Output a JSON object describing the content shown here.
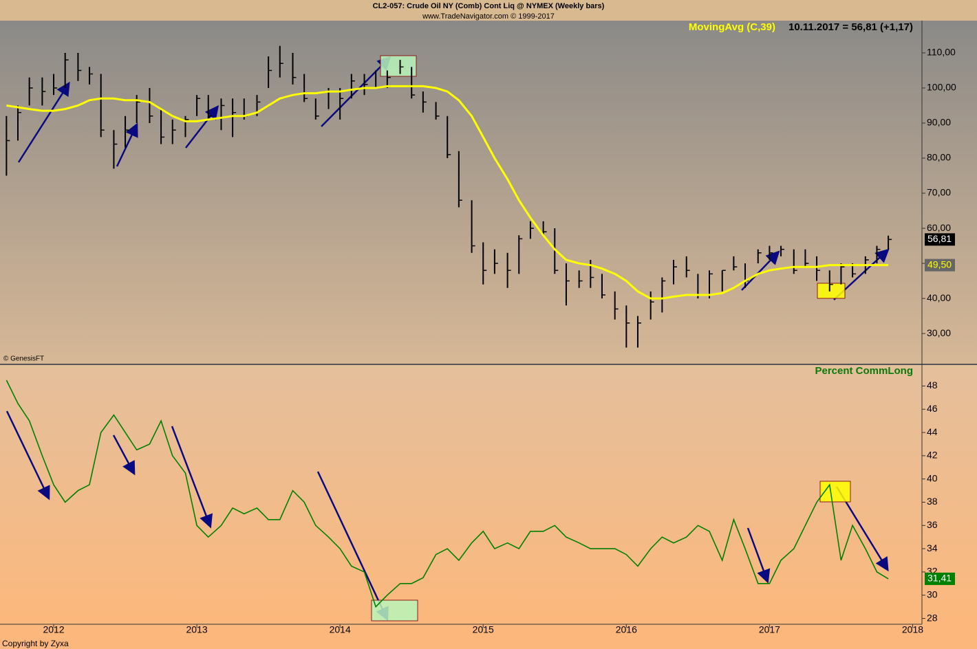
{
  "title": "CL2-057:  Crude Oil NY (Comb) Cont Liq @ NYMEX  (Weekly bars)",
  "subtitle": "www.TradeNavigator.com © 1999-2017",
  "footer": "Copyright by Zyxa",
  "chart_data": [
    {
      "type": "ohlc",
      "readout": "10.11.2017 = 56,81 (+1,17)",
      "source": "© GenesisFT",
      "color": "#000000",
      "x": [
        2011.67,
        2011.75,
        2011.83,
        2011.92,
        2012.0,
        2012.08,
        2012.17,
        2012.25,
        2012.33,
        2012.42,
        2012.5,
        2012.58,
        2012.67,
        2012.75,
        2012.83,
        2012.92,
        2013.0,
        2013.08,
        2013.17,
        2013.25,
        2013.33,
        2013.42,
        2013.5,
        2013.58,
        2013.67,
        2013.75,
        2013.83,
        2013.92,
        2014.0,
        2014.08,
        2014.17,
        2014.25,
        2014.33,
        2014.42,
        2014.5,
        2014.58,
        2014.67,
        2014.75,
        2014.83,
        2014.92,
        2015.0,
        2015.08,
        2015.17,
        2015.25,
        2015.33,
        2015.42,
        2015.5,
        2015.58,
        2015.67,
        2015.75,
        2015.83,
        2015.92,
        2016.0,
        2016.08,
        2016.17,
        2016.25,
        2016.33,
        2016.42,
        2016.5,
        2016.58,
        2016.67,
        2016.75,
        2016.83,
        2016.92,
        2017.0,
        2017.08,
        2017.17,
        2017.25,
        2017.33,
        2017.42,
        2017.5,
        2017.58,
        2017.67,
        2017.75,
        2017.83
      ],
      "high": [
        92,
        95,
        103,
        103,
        104,
        110,
        110,
        106,
        104,
        88,
        92,
        98,
        100,
        94,
        91,
        92,
        98,
        98,
        97,
        97,
        97,
        98,
        109,
        112,
        110,
        104,
        97,
        100,
        100,
        104,
        104,
        105,
        105,
        108,
        106,
        99,
        96,
        92,
        82,
        68,
        56,
        54,
        53,
        58,
        62,
        62,
        60,
        50,
        48,
        51,
        47,
        42,
        38,
        35,
        42,
        46,
        51,
        52,
        47,
        48,
        48,
        52,
        50,
        54,
        55,
        55,
        54,
        54,
        52,
        48,
        50,
        50,
        52,
        55,
        57.9
      ],
      "low": [
        75,
        85,
        95,
        95,
        98,
        100,
        102,
        101,
        86,
        77,
        83,
        90,
        90,
        84,
        84,
        86,
        92,
        91,
        88,
        86,
        91,
        92,
        100,
        103,
        101,
        96,
        91,
        94,
        91,
        97,
        98,
        100,
        100,
        104,
        97,
        93,
        91,
        80,
        66,
        53,
        44,
        47,
        43,
        47,
        57,
        58,
        47,
        38,
        43,
        43,
        40,
        34,
        26,
        26,
        34,
        36,
        44,
        46,
        40,
        40,
        42,
        48,
        43,
        50,
        51,
        52,
        47,
        49,
        45,
        42,
        44,
        46,
        47,
        50,
        54
      ],
      "close": [
        85,
        93,
        100,
        99,
        100,
        108,
        105,
        104,
        88,
        84,
        88,
        96,
        92,
        86,
        88,
        91,
        97,
        92,
        95,
        93,
        92,
        96,
        105,
        107,
        103,
        97,
        92,
        99,
        97,
        102,
        101,
        100,
        103,
        106,
        98,
        96,
        92,
        81,
        68,
        55,
        48,
        50,
        48,
        57,
        60,
        59,
        48,
        45,
        45,
        46,
        41,
        37,
        33,
        33,
        39,
        45,
        49,
        48,
        41,
        47,
        48,
        49,
        45,
        53,
        53,
        54,
        48,
        50,
        48,
        44,
        49,
        47,
        51,
        54,
        56.81
      ],
      "close_label": "56,81",
      "series": [
        {
          "name": "MovingAvg (C,39)",
          "color": "#ffff00",
          "last_label": "49,50",
          "values": [
            95,
            94.5,
            94,
            93.5,
            93.5,
            94,
            95,
            96.5,
            97,
            97,
            96.5,
            96.5,
            96,
            94,
            92,
            90.5,
            90.5,
            91,
            91.5,
            92,
            92,
            93,
            95,
            97,
            98,
            98.5,
            98.5,
            99,
            99,
            99.5,
            100,
            100,
            100.5,
            100.5,
            100.5,
            100.5,
            100,
            99,
            96.5,
            92,
            86,
            80,
            74,
            68,
            63,
            58,
            54,
            51,
            50,
            49.5,
            48.5,
            47,
            45,
            42,
            40,
            40,
            40.5,
            41,
            41,
            41,
            41.5,
            43,
            45,
            47,
            48,
            48.5,
            49,
            49,
            49,
            49.5,
            49.5,
            49.5,
            49.5,
            49.5,
            49.5
          ]
        }
      ],
      "xlim": [
        2011.625,
        2018.065
      ],
      "xticks": [
        2012,
        2013,
        2014,
        2015,
        2016,
        2017,
        2018
      ],
      "ylim": [
        21.4,
        119.2
      ],
      "yticks": [
        {
          "value": 30,
          "label": "30,00"
        },
        {
          "value": 40,
          "label": "40,00"
        },
        {
          "value": 50,
          "label": "50,00"
        },
        {
          "value": 60,
          "label": "60,00"
        },
        {
          "value": 70,
          "label": "70,00"
        },
        {
          "value": 80,
          "label": "80,00"
        },
        {
          "value": 90,
          "label": "90,00"
        },
        {
          "value": 100,
          "label": "100,00"
        },
        {
          "value": 110,
          "label": "110,00"
        }
      ]
    },
    {
      "type": "line",
      "x": [
        2011.67,
        2011.75,
        2011.83,
        2011.92,
        2012.0,
        2012.08,
        2012.17,
        2012.25,
        2012.33,
        2012.42,
        2012.5,
        2012.58,
        2012.67,
        2012.75,
        2012.83,
        2012.92,
        2013.0,
        2013.08,
        2013.17,
        2013.25,
        2013.33,
        2013.42,
        2013.5,
        2013.58,
        2013.67,
        2013.75,
        2013.83,
        2013.92,
        2014.0,
        2014.08,
        2014.17,
        2014.25,
        2014.33,
        2014.42,
        2014.5,
        2014.58,
        2014.67,
        2014.75,
        2014.83,
        2014.92,
        2015.0,
        2015.08,
        2015.17,
        2015.25,
        2015.33,
        2015.42,
        2015.5,
        2015.58,
        2015.67,
        2015.75,
        2015.83,
        2015.92,
        2016.0,
        2016.08,
        2016.17,
        2016.25,
        2016.33,
        2016.42,
        2016.5,
        2016.58,
        2016.67,
        2016.75,
        2016.83,
        2016.92,
        2017.0,
        2017.08,
        2017.17,
        2017.25,
        2017.33,
        2017.42,
        2017.5,
        2017.58,
        2017.67,
        2017.75,
        2017.83
      ],
      "series": [
        {
          "name": "Percent CommLong",
          "color": "#008000",
          "last_label": "31,41",
          "values": [
            48.5,
            46.5,
            45,
            42,
            39.5,
            38,
            39,
            39.5,
            44,
            45.5,
            44,
            42.5,
            43,
            45,
            42,
            40.5,
            36,
            35,
            36,
            37.5,
            37,
            37.5,
            36.5,
            36.5,
            39,
            38,
            36,
            35,
            34,
            32.5,
            32,
            29,
            30,
            31,
            31,
            31.5,
            33.5,
            34,
            33,
            34.5,
            35.5,
            34,
            34.5,
            34,
            35.5,
            35.5,
            36,
            35,
            34.5,
            34,
            34,
            34,
            33.5,
            32.5,
            34,
            35,
            34.5,
            35,
            36,
            35.5,
            33,
            36.5,
            34,
            31,
            31,
            33,
            34,
            36,
            38,
            39.5,
            33,
            36,
            34,
            32,
            31.41
          ]
        }
      ],
      "xlim": [
        2011.625,
        2018.065
      ],
      "xticks": [
        2012,
        2013,
        2014,
        2015,
        2016,
        2017,
        2018
      ],
      "ylim": [
        27.5,
        49.8
      ],
      "yticks": [
        28,
        30,
        32,
        34,
        36,
        38,
        40,
        42,
        44,
        46,
        48
      ]
    }
  ]
}
